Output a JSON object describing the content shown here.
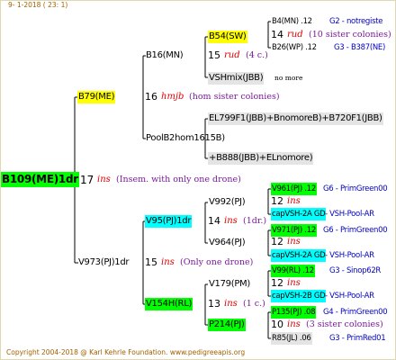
{
  "header": "9- 1-2018 ( 23: 1)",
  "nodes": [
    {
      "name": "B109(ME)1dr",
      "year": "17",
      "mark": "ins",
      "note": "(Insem. with only one drone)"
    },
    {
      "name": "B79(ME)",
      "year": "16",
      "mark": "hmjb",
      "note": "(hom sister colonies)"
    },
    {
      "name": "B16(MN)",
      "year": "15",
      "mark": "rud",
      "note": "(4 c.)"
    },
    {
      "name": "B54(SW)",
      "year": "14",
      "mark": "rud",
      "note": "(10 sister colonies)"
    },
    {
      "name": "B4(MN) .12",
      "origin": "G2 - notregiste"
    },
    {
      "name": "B26(WP) .12",
      "origin": "G3 - B387(NE)"
    },
    {
      "name": "VSHmix(JBB)",
      "note": "no more"
    },
    {
      "name": "PoolB2hom1615B)"
    },
    {
      "name": "EL799F1(JBB)+BnomoreB)+B720F1(JBB)"
    },
    {
      "name": "+B888(JBB)+ELnomore)"
    },
    {
      "name": "V973(PJ)1dr",
      "year": "15",
      "mark": "ins",
      "note": "(Only one drone)"
    },
    {
      "name": "V95(PJ)1dr",
      "year": "14",
      "mark": "ins",
      "note": "(1dr.)"
    },
    {
      "name": "V992(PJ)",
      "year": "12",
      "mark": "ins"
    },
    {
      "name": "V961(PJ) .12",
      "origin": "G6 - PrimGreen00"
    },
    {
      "name": "capVSH-2A GD",
      "origin": "- VSH-Pool-AR"
    },
    {
      "name": "V964(PJ)",
      "year": "12",
      "mark": "ins"
    },
    {
      "name": "V971(PJ) .12",
      "origin": "G6 - PrimGreen00"
    },
    {
      "name": "capVSH-2A GD",
      "origin": "- VSH-Pool-AR"
    },
    {
      "name": "V154H(RL)",
      "year": "13",
      "mark": "ins",
      "note": "(1 c.)"
    },
    {
      "name": "V179(PM)",
      "year": "12",
      "mark": "ins"
    },
    {
      "name": "V99(RL) .12",
      "origin": "G3 - Sinop62R"
    },
    {
      "name": "capVSH-2B GD",
      "origin": "- VSH-Pool-AR"
    },
    {
      "name": "P214(PJ)",
      "year": "10",
      "mark": "ins",
      "note": "(3 sister colonies)"
    },
    {
      "name": "P135(PJ) .08",
      "origin": "G4 - PrimGreen00"
    },
    {
      "name": "R85(JL) .06",
      "origin": "G3 - PrimRed01"
    }
  ],
  "footer": "Copyright 2004-2018 @ Karl Kehrle Foundation.   www.pedigreeapis.org"
}
